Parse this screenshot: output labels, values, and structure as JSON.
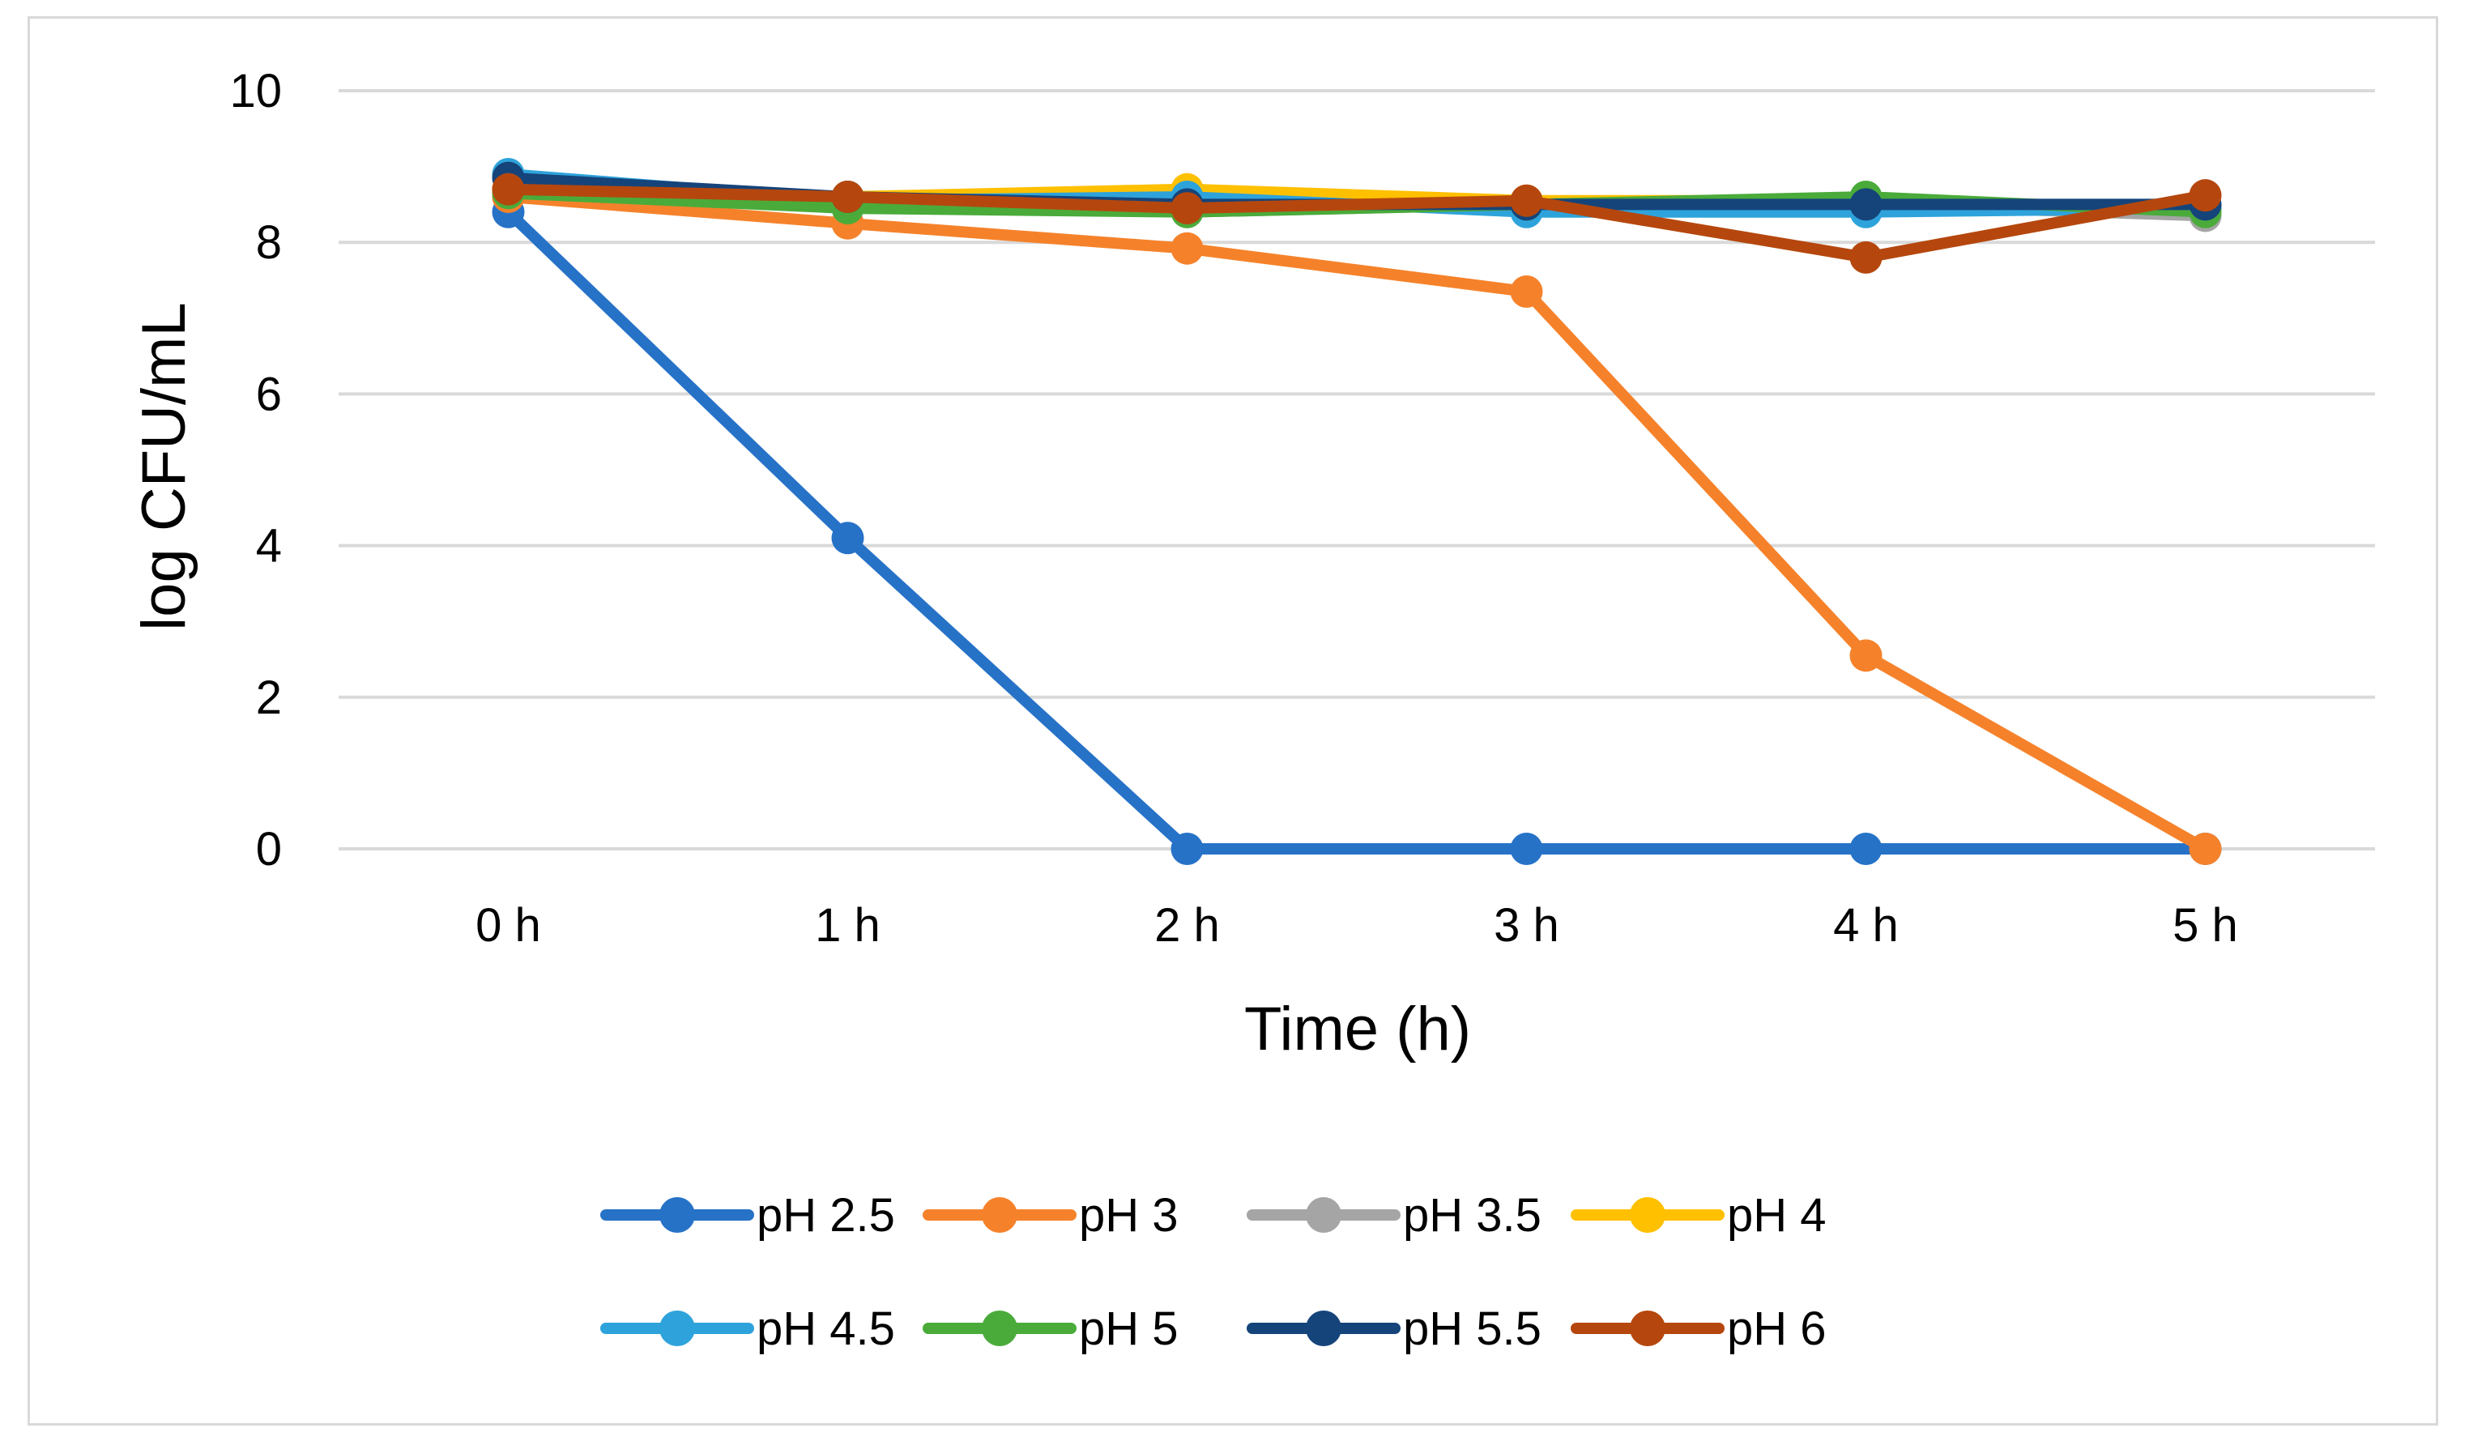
{
  "chart_data": {
    "type": "line",
    "title": "",
    "xlabel": "Time (h)",
    "ylabel": "log CFU/mL",
    "categories": [
      "0 h",
      "1 h",
      "2 h",
      "3 h",
      "4 h",
      "5 h"
    ],
    "ylim": [
      0,
      10
    ],
    "yticks": [
      "0",
      "2",
      "4",
      "6",
      "8",
      "10"
    ],
    "grid": true,
    "legend_position": "bottom",
    "series": [
      {
        "name": "pH 2.5",
        "color": "#2672c7",
        "values": [
          8.4,
          4.1,
          0,
          0,
          0,
          0
        ]
      },
      {
        "name": "pH 3",
        "color": "#f5822b",
        "values": [
          8.6,
          8.25,
          7.92,
          7.35,
          2.55,
          0
        ]
      },
      {
        "name": "pH 3.5",
        "color": "#a5a5a5",
        "values": [
          8.7,
          8.55,
          8.4,
          8.5,
          8.5,
          8.35
        ]
      },
      {
        "name": "pH 4",
        "color": "#ffc000",
        "values": [
          8.7,
          8.6,
          8.7,
          8.55,
          8.55,
          8.45
        ]
      },
      {
        "name": "pH 4.5",
        "color": "#2ea3db",
        "values": [
          8.9,
          8.55,
          8.6,
          8.4,
          8.4,
          8.45
        ]
      },
      {
        "name": "pH 5",
        "color": "#4aab3a",
        "values": [
          8.65,
          8.45,
          8.4,
          8.5,
          8.6,
          8.4
        ]
      },
      {
        "name": "pH 5.5",
        "color": "#15447a",
        "values": [
          8.85,
          8.6,
          8.5,
          8.5,
          8.5,
          8.5
        ]
      },
      {
        "name": "pH 6",
        "color": "#b5470e",
        "values": [
          8.7,
          8.6,
          8.45,
          8.55,
          7.8,
          8.62
        ]
      }
    ]
  }
}
